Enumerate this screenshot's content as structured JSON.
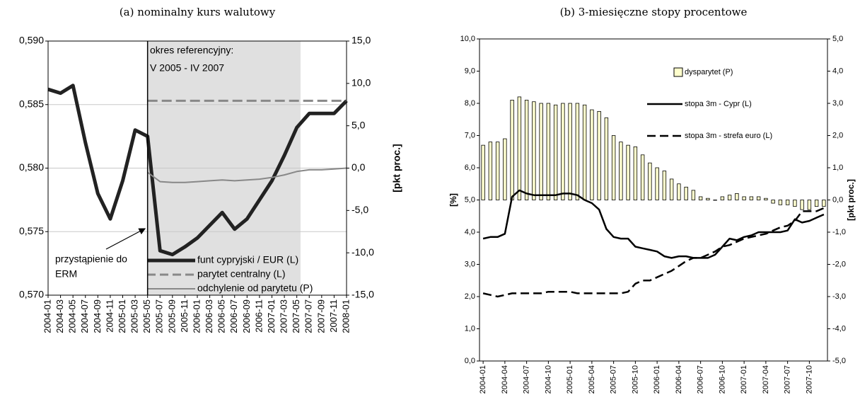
{
  "chart_data": [
    {
      "type": "line",
      "title": "(a) nominalny kurs walutowy",
      "y2_label": "[pkt proc.]",
      "annotations": [
        "okres referencyjny:",
        "V 2005 - IV 2007",
        "przystąpienie do",
        "ERM"
      ],
      "categories": [
        "2004-01",
        "2004-03",
        "2004-05",
        "2004-07",
        "2004-09",
        "2004-11",
        "2005-01",
        "2005-03",
        "2005-05",
        "2005-07",
        "2005-09",
        "2005-11",
        "2006-01",
        "2006-03",
        "2006-05",
        "2006-07",
        "2006-09",
        "2006-11",
        "2007-01",
        "2007-03",
        "2007-05",
        "2007-07",
        "2007-09",
        "2007-11",
        "2008-01"
      ],
      "series": [
        {
          "name": "funt cypryjski / EUR (L)",
          "color": "#222222",
          "values": [
            0.5862,
            0.5859,
            0.5865,
            0.582,
            0.578,
            0.576,
            0.579,
            0.583,
            0.5825,
            0.5735,
            0.5732,
            0.5738,
            0.5745,
            0.5755,
            0.5765,
            0.5752,
            0.576,
            0.5775,
            0.579,
            0.581,
            0.5832,
            0.5843,
            0.5843,
            0.5843,
            0.5853
          ]
        },
        {
          "name": "parytet centralny (L)",
          "color": "#888888",
          "line_style": "dashed",
          "values": [
            null,
            null,
            null,
            null,
            null,
            null,
            null,
            null,
            0.5853,
            0.5853,
            0.5853,
            0.5853,
            0.5853,
            0.5853,
            0.5853,
            0.5853,
            0.5853,
            0.5853,
            0.5853,
            0.5853,
            0.5853,
            0.5853,
            0.5853,
            0.5853,
            0.5853
          ]
        },
        {
          "name": "odchylenie od parytetu (P)",
          "color": "#888888",
          "axis": "y2",
          "values": [
            null,
            null,
            null,
            null,
            null,
            null,
            null,
            null,
            -0.5,
            -1.6,
            -1.7,
            -1.7,
            -1.6,
            -1.5,
            -1.4,
            -1.5,
            -1.4,
            -1.3,
            -1.1,
            -0.8,
            -0.4,
            -0.2,
            -0.2,
            -0.1,
            0.0
          ]
        }
      ],
      "ylim": [
        0.57,
        0.59
      ],
      "yticks": [
        {
          "value": 0.57,
          "label": "0,570"
        },
        {
          "value": 0.575,
          "label": "0,575"
        },
        {
          "value": 0.58,
          "label": "0,580"
        },
        {
          "value": 0.585,
          "label": "0,585"
        },
        {
          "value": 0.59,
          "label": "0,590"
        }
      ],
      "y2lim": [
        -15,
        15
      ],
      "y2ticks": [
        {
          "value": -15,
          "label": "-15,0"
        },
        {
          "value": -10,
          "label": "-10,0"
        },
        {
          "value": -5,
          "label": "-5,0"
        },
        {
          "value": 0,
          "label": "0,0"
        },
        {
          "value": 5,
          "label": "5,0"
        },
        {
          "value": 10,
          "label": "10,0"
        },
        {
          "value": 15,
          "label": "15,0"
        }
      ],
      "grid": true
    },
    {
      "type": "combo",
      "title": "(b) 3-miesięczne stopy procentowe",
      "y_label": "[%]",
      "y2_label": "[pkt proc.]",
      "categories": [
        "2004-01",
        null,
        null,
        "2004-04",
        null,
        null,
        "2004-07",
        null,
        null,
        "2004-10",
        null,
        null,
        "2005-01",
        null,
        null,
        "2005-04",
        null,
        null,
        "2005-07",
        null,
        null,
        "2005-10",
        null,
        null,
        "2006-01",
        null,
        null,
        "2006-04",
        null,
        null,
        "2006-07",
        null,
        null,
        "2006-10",
        null,
        null,
        "2007-01",
        null,
        null,
        "2007-04",
        null,
        null,
        "2007-07",
        null,
        null,
        "2007-10",
        null,
        null
      ],
      "series": [
        {
          "name": "dysparytet (P)",
          "type": "bar",
          "axis": "y2",
          "color": "#ffffcc",
          "values": [
            1.7,
            1.8,
            1.8,
            1.9,
            3.1,
            3.2,
            3.1,
            3.05,
            3.0,
            3.0,
            2.95,
            3.0,
            3.0,
            3.0,
            2.95,
            2.8,
            2.75,
            2.55,
            2.0,
            1.8,
            1.7,
            1.65,
            1.4,
            1.15,
            1.0,
            0.9,
            0.65,
            0.5,
            0.4,
            0.3,
            0.1,
            0.05,
            0.0,
            0.1,
            0.15,
            0.2,
            0.1,
            0.1,
            0.1,
            0.05,
            -0.1,
            -0.15,
            -0.15,
            -0.2,
            -0.3,
            -0.3,
            -0.2,
            -0.2
          ]
        },
        {
          "name": "stopa 3m - Cypr (L)",
          "type": "line",
          "color": "#000000",
          "values": [
            3.8,
            3.85,
            3.85,
            3.95,
            5.1,
            5.3,
            5.2,
            5.15,
            5.15,
            5.15,
            5.15,
            5.2,
            5.2,
            5.15,
            5.0,
            4.9,
            4.7,
            4.1,
            3.85,
            3.8,
            3.8,
            3.55,
            3.5,
            3.45,
            3.4,
            3.25,
            3.2,
            3.25,
            3.25,
            3.2,
            3.2,
            3.2,
            3.3,
            3.55,
            3.8,
            3.75,
            3.85,
            3.9,
            4.0,
            4.0,
            4.0,
            4.0,
            4.05,
            4.4,
            4.3,
            4.35,
            4.45,
            4.55
          ]
        },
        {
          "name": "stopa 3m - strefa euro (L)",
          "type": "line",
          "line_style": "dashed",
          "color": "#000000",
          "values": [
            2.1,
            2.05,
            2.0,
            2.05,
            2.1,
            2.1,
            2.1,
            2.1,
            2.1,
            2.15,
            2.15,
            2.15,
            2.15,
            2.1,
            2.1,
            2.1,
            2.1,
            2.1,
            2.1,
            2.1,
            2.15,
            2.4,
            2.5,
            2.5,
            2.6,
            2.7,
            2.8,
            2.95,
            3.1,
            3.2,
            3.2,
            3.3,
            3.4,
            3.55,
            3.6,
            3.7,
            3.8,
            3.85,
            3.9,
            3.95,
            4.05,
            4.15,
            4.2,
            4.35,
            4.65,
            4.65,
            4.65,
            4.75
          ]
        }
      ],
      "ylim": [
        0,
        10
      ],
      "yticks": [
        {
          "value": 0,
          "label": "0,0"
        },
        {
          "value": 1,
          "label": "1,0"
        },
        {
          "value": 2,
          "label": "2,0"
        },
        {
          "value": 3,
          "label": "3,0"
        },
        {
          "value": 4,
          "label": "4,0"
        },
        {
          "value": 5,
          "label": "5,0"
        },
        {
          "value": 6,
          "label": "6,0"
        },
        {
          "value": 7,
          "label": "7,0"
        },
        {
          "value": 8,
          "label": "8,0"
        },
        {
          "value": 9,
          "label": "9,0"
        },
        {
          "value": 10,
          "label": "10,0"
        }
      ],
      "y2lim": [
        -5,
        5
      ],
      "y2ticks": [
        {
          "value": -5,
          "label": "-5,0"
        },
        {
          "value": -4,
          "label": "-4,0"
        },
        {
          "value": -3,
          "label": "-3,0"
        },
        {
          "value": -2,
          "label": "-2,0"
        },
        {
          "value": -1,
          "label": "-1,0"
        },
        {
          "value": 0,
          "label": "0,0"
        },
        {
          "value": 1,
          "label": "1,0"
        },
        {
          "value": 2,
          "label": "2,0"
        },
        {
          "value": 3,
          "label": "3,0"
        },
        {
          "value": 4,
          "label": "4,0"
        },
        {
          "value": 5,
          "label": "5,0"
        }
      ],
      "grid": false
    }
  ]
}
